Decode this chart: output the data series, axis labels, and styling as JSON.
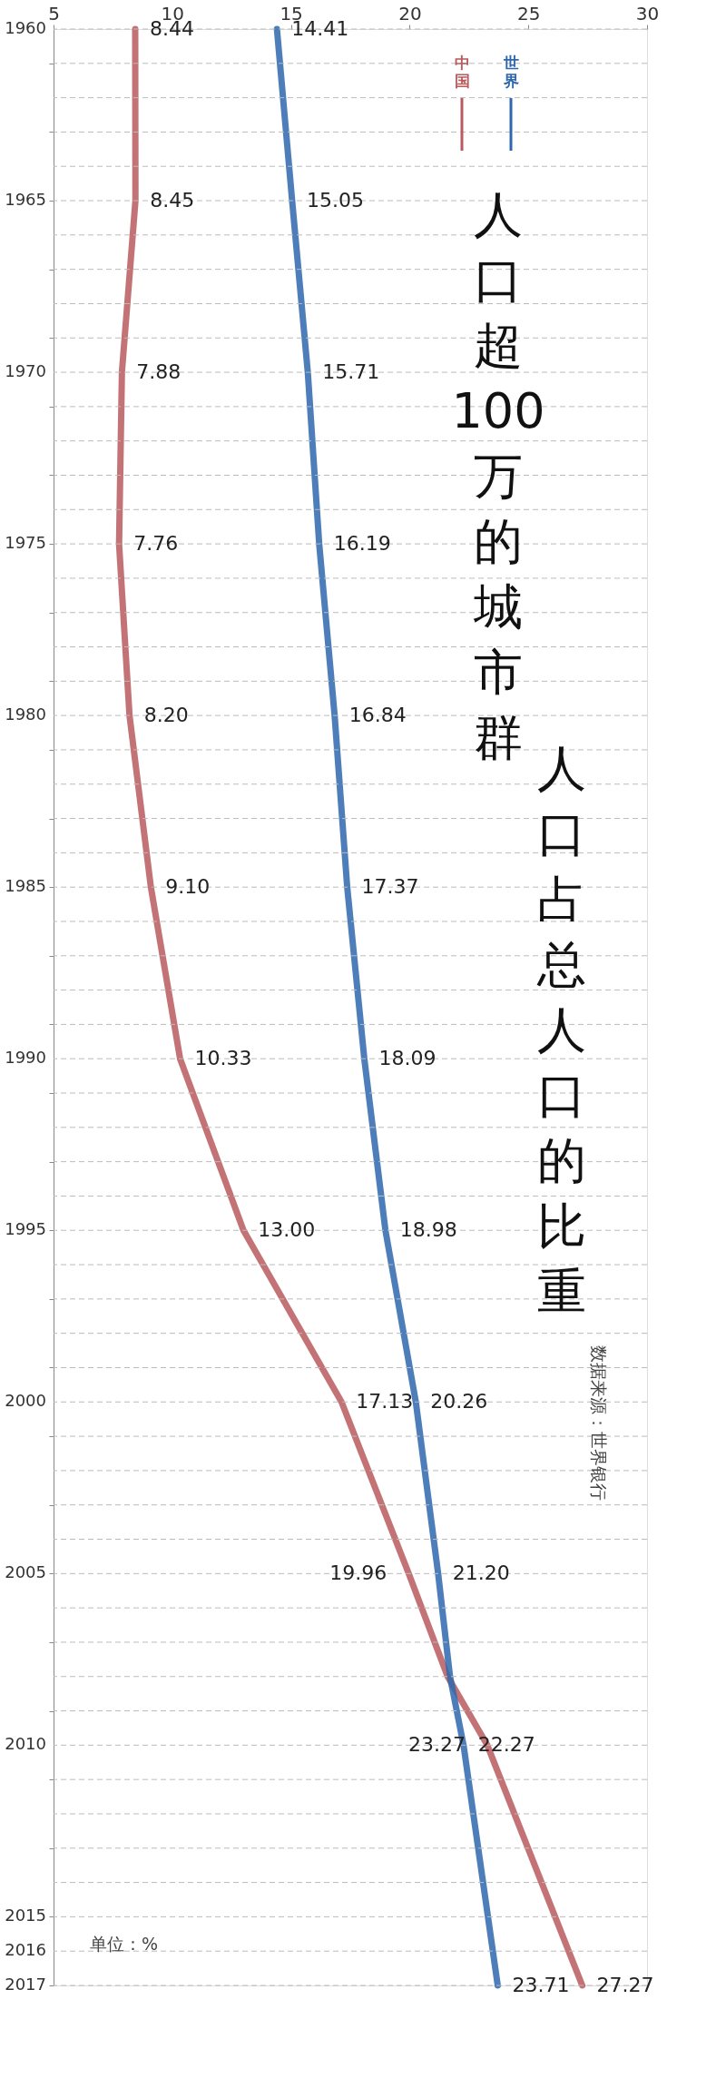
{
  "chart_data": {
    "type": "line",
    "title": "人口超100万的城市群",
    "subtitle": "人口占总人口的比重",
    "orientation": "horizontal",
    "legend": "top right",
    "grid": "y",
    "line_style": "solid",
    "x": [
      1960,
      1965,
      1970,
      1975,
      1980,
      1985,
      1990,
      1995,
      2000,
      2005,
      2008,
      2010,
      2017
    ],
    "series": [
      {
        "name": "中国",
        "color": "#b85a5e",
        "values": [
          8.44,
          8.45,
          7.88,
          7.76,
          8.2,
          9.1,
          10.33,
          13.0,
          17.13,
          19.96,
          21.6,
          23.27,
          27.27
        ],
        "value_labels": [
          "8.44",
          "8.45",
          "7.88",
          "7.76",
          "8.20",
          "9.10",
          "10.33",
          "13.00",
          "17.13",
          "19.96",
          null,
          "23.27",
          "27.27"
        ]
      },
      {
        "name": "世界",
        "color": "#2e67ad",
        "values": [
          14.41,
          15.05,
          15.71,
          16.19,
          16.84,
          17.37,
          18.09,
          18.98,
          20.26,
          21.2,
          21.7,
          22.27,
          23.71
        ],
        "value_labels": [
          "14.41",
          "15.05",
          "15.71",
          "16.19",
          "16.84",
          "17.37",
          "18.09",
          "18.98",
          "20.26",
          "21.20",
          null,
          "22.27",
          "23.71"
        ]
      }
    ],
    "xlim": [
      5,
      30
    ],
    "xticks": [
      5,
      10,
      15,
      20,
      25,
      30
    ],
    "ylim": [
      2017,
      1960
    ],
    "yticks": [
      1960,
      {
        "value": 1961,
        "label": null
      },
      {
        "value": 1962,
        "label": null
      },
      {
        "value": 1963,
        "label": null
      },
      {
        "value": 1964,
        "label": null
      },
      1965,
      {
        "value": 1966,
        "label": null
      },
      {
        "value": 1967,
        "label": null
      },
      {
        "value": 1968,
        "label": null
      },
      {
        "value": 1969,
        "label": null
      },
      1970,
      {
        "value": 1971,
        "label": null
      },
      {
        "value": 1972,
        "label": null
      },
      {
        "value": 1973,
        "label": null
      },
      {
        "value": 1974,
        "label": null
      },
      1975,
      {
        "value": 1976,
        "label": null
      },
      {
        "value": 1977,
        "label": null
      },
      {
        "value": 1978,
        "label": null
      },
      {
        "value": 1979,
        "label": null
      },
      1980,
      {
        "value": 1981,
        "label": null
      },
      {
        "value": 1982,
        "label": null
      },
      {
        "value": 1983,
        "label": null
      },
      {
        "value": 1984,
        "label": null
      },
      1985,
      {
        "value": 1986,
        "label": null
      },
      {
        "value": 1987,
        "label": null
      },
      {
        "value": 1988,
        "label": null
      },
      {
        "value": 1989,
        "label": null
      },
      1990,
      {
        "value": 1991,
        "label": null
      },
      {
        "value": 1992,
        "label": null
      },
      {
        "value": 1993,
        "label": null
      },
      {
        "value": 1994,
        "label": null
      },
      1995,
      {
        "value": 1996,
        "label": null
      },
      {
        "value": 1997,
        "label": null
      },
      {
        "value": 1998,
        "label": null
      },
      {
        "value": 1999,
        "label": null
      },
      2000,
      {
        "value": 2001,
        "label": null
      },
      {
        "value": 2002,
        "label": null
      },
      {
        "value": 2003,
        "label": null
      },
      {
        "value": 2004,
        "label": null
      },
      2005,
      {
        "value": 2006,
        "label": null
      },
      {
        "value": 2007,
        "label": null
      },
      {
        "value": 2008,
        "label": null
      },
      {
        "value": 2009,
        "label": null
      },
      2010,
      {
        "value": 2011,
        "label": null
      },
      {
        "value": 2012,
        "label": null
      },
      {
        "value": 2013,
        "label": null
      },
      {
        "value": 2014,
        "label": null
      },
      2015,
      2016,
      2017
    ],
    "annotations": [
      "单位：%",
      "数据来源：世界银行"
    ]
  }
}
